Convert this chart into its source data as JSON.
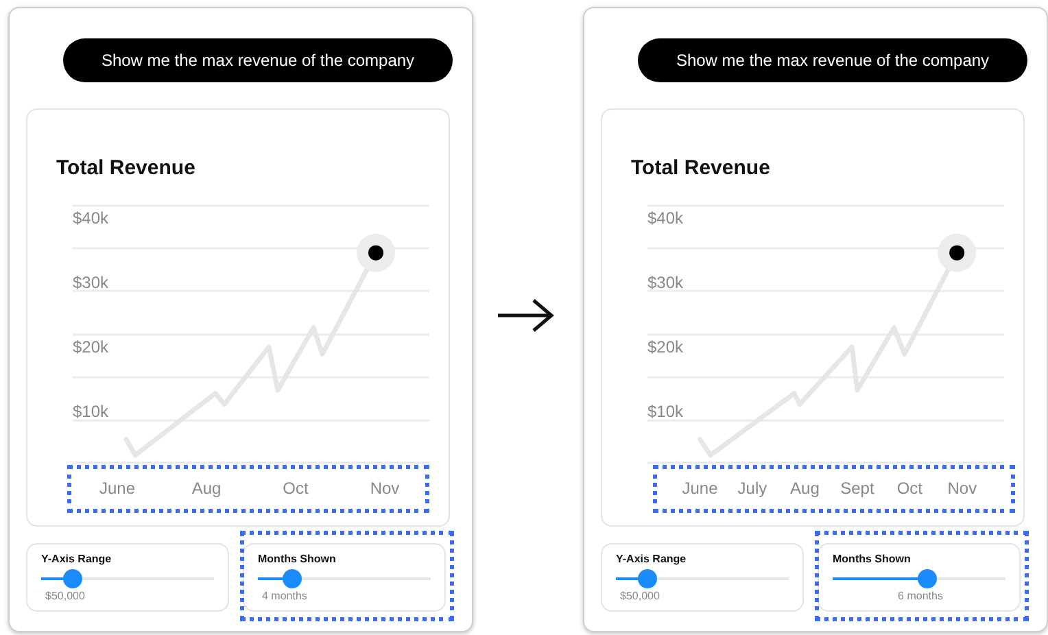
{
  "chart_data": [
    {
      "type": "line",
      "title": "Total Revenue",
      "grid": false,
      "ylim": [
        2.2,
        42.1
      ],
      "categories": [
        null,
        null,
        null,
        null,
        null,
        "June",
        null,
        null,
        null,
        null,
        null,
        null,
        null,
        null,
        null,
        "Aug",
        null,
        null,
        null,
        null,
        null,
        null,
        null,
        null,
        null,
        "Oct",
        null,
        null,
        null,
        null,
        null,
        null,
        null,
        null,
        null,
        "Nov",
        null,
        null,
        null,
        null,
        null
      ],
      "yticks": [
        {
          "value": 10,
          "label": "$10k"
        },
        {
          "value": 20,
          "label": "$20k"
        },
        {
          "value": 30,
          "label": "$30k"
        },
        {
          "value": 40,
          "label": "$40k"
        }
      ],
      "series": [
        {
          "color": "#e6e6e6",
          "marker": "none",
          "values": [
            null,
            null,
            null,
            null,
            null,
            null,
            5.9,
            3.4,
            null,
            null,
            null,
            null,
            null,
            null,
            null,
            null,
            13.0,
            11.3,
            null,
            null,
            null,
            null,
            20.2,
            13.5,
            null,
            null,
            null,
            23.2,
            19.1,
            null,
            null,
            null,
            null,
            null,
            34.8,
            null,
            null,
            null,
            null,
            null,
            null
          ]
        },
        {
          "type": "bubble",
          "color": "#ececec",
          "sizes": [
            null,
            null,
            null,
            null,
            null,
            null,
            null,
            null,
            null,
            null,
            null,
            null,
            null,
            null,
            null,
            null,
            null,
            null,
            null,
            null,
            null,
            null,
            null,
            null,
            null,
            null,
            null,
            null,
            null,
            null,
            null,
            null,
            null,
            null,
            1,
            null,
            null,
            null,
            null,
            null,
            null
          ],
          "values": [
            null,
            null,
            null,
            null,
            null,
            null,
            null,
            null,
            null,
            null,
            null,
            null,
            null,
            null,
            null,
            null,
            null,
            null,
            null,
            null,
            null,
            null,
            null,
            null,
            null,
            null,
            null,
            null,
            null,
            null,
            null,
            null,
            null,
            null,
            34.8,
            null,
            null,
            null,
            null,
            null,
            null
          ]
        },
        {
          "type": "scatter",
          "marker": "circle",
          "color": "#000000",
          "values": [
            null,
            null,
            null,
            null,
            null,
            null,
            null,
            null,
            null,
            null,
            null,
            null,
            null,
            null,
            null,
            null,
            null,
            null,
            null,
            null,
            null,
            null,
            null,
            null,
            null,
            null,
            null,
            null,
            null,
            null,
            null,
            null,
            null,
            null,
            34.8,
            null,
            null,
            null,
            null,
            null,
            null
          ]
        }
      ],
      "ref_lines": [
        {
          "axis": "y",
          "value": 2.2,
          "color": "#ececec"
        },
        {
          "axis": "y",
          "value": 8.8,
          "color": "#ececec"
        },
        {
          "axis": "y",
          "value": 15.5,
          "color": "#ececec"
        },
        {
          "axis": "y",
          "value": 22.1,
          "color": "#ececec"
        },
        {
          "axis": "y",
          "value": 28.9,
          "color": "#ececec"
        },
        {
          "axis": "y",
          "value": 35.5,
          "color": "#ececec"
        },
        {
          "axis": "y",
          "value": 42.1,
          "color": "#ececec"
        }
      ],
      "annotations": [
        "Show me the max revenue of the company",
        "Y-Axis Range",
        "$50,000",
        "Months Shown",
        "4 months"
      ]
    },
    {
      "type": "line",
      "title": "Total Revenue",
      "grid": false,
      "ylim": [
        2.2,
        42.1
      ],
      "categories": [
        null,
        null,
        null,
        null,
        null,
        null,
        null,
        null,
        null,
        null,
        "June",
        null,
        null,
        null,
        null,
        null,
        null,
        null,
        null,
        null,
        "July",
        null,
        null,
        null,
        null,
        null,
        null,
        null,
        null,
        null,
        "Aug",
        null,
        null,
        null,
        null,
        null,
        null,
        null,
        null,
        null,
        "Sept",
        null,
        null,
        null,
        null,
        null,
        null,
        null,
        null,
        null,
        "Oct",
        null,
        null,
        null,
        null,
        null,
        null,
        null,
        null,
        null,
        "Nov",
        null,
        null,
        null,
        null,
        null,
        null,
        null,
        null
      ],
      "yticks": [
        {
          "value": 10,
          "label": "$10k"
        },
        {
          "value": 20,
          "label": "$20k"
        },
        {
          "value": 30,
          "label": "$30k"
        },
        {
          "value": 40,
          "label": "$40k"
        }
      ],
      "series": [
        {
          "color": "#e6e6e6",
          "marker": "none",
          "values": [
            null,
            null,
            null,
            null,
            null,
            null,
            null,
            null,
            null,
            null,
            5.9,
            null,
            3.4,
            null,
            null,
            null,
            null,
            null,
            null,
            null,
            null,
            null,
            null,
            null,
            null,
            null,
            null,
            null,
            13.0,
            11.3,
            null,
            null,
            null,
            null,
            null,
            null,
            null,
            null,
            null,
            20.2,
            13.5,
            null,
            null,
            null,
            null,
            null,
            null,
            23.2,
            null,
            19.1,
            null,
            null,
            null,
            null,
            null,
            null,
            null,
            null,
            null,
            34.8,
            null,
            null,
            null,
            null,
            null,
            null,
            null,
            null,
            null
          ]
        },
        {
          "type": "bubble",
          "color": "#ececec",
          "sizes": [
            null,
            null,
            null,
            null,
            null,
            null,
            null,
            null,
            null,
            null,
            null,
            null,
            null,
            null,
            null,
            null,
            null,
            null,
            null,
            null,
            null,
            null,
            null,
            null,
            null,
            null,
            null,
            null,
            null,
            null,
            null,
            null,
            null,
            null,
            null,
            null,
            null,
            null,
            null,
            null,
            null,
            null,
            null,
            null,
            null,
            null,
            null,
            null,
            null,
            null,
            null,
            null,
            null,
            null,
            null,
            null,
            null,
            null,
            null,
            1,
            null,
            null,
            null,
            null,
            null,
            null,
            null,
            null,
            null
          ],
          "values": [
            null,
            null,
            null,
            null,
            null,
            null,
            null,
            null,
            null,
            null,
            null,
            null,
            null,
            null,
            null,
            null,
            null,
            null,
            null,
            null,
            null,
            null,
            null,
            null,
            null,
            null,
            null,
            null,
            null,
            null,
            null,
            null,
            null,
            null,
            null,
            null,
            null,
            null,
            null,
            null,
            null,
            null,
            null,
            null,
            null,
            null,
            null,
            null,
            null,
            null,
            null,
            null,
            null,
            null,
            null,
            null,
            null,
            null,
            null,
            34.8,
            null,
            null,
            null,
            null,
            null,
            null,
            null,
            null,
            null
          ]
        },
        {
          "type": "scatter",
          "marker": "circle",
          "color": "#000000",
          "values": [
            null,
            null,
            null,
            null,
            null,
            null,
            null,
            null,
            null,
            null,
            null,
            null,
            null,
            null,
            null,
            null,
            null,
            null,
            null,
            null,
            null,
            null,
            null,
            null,
            null,
            null,
            null,
            null,
            null,
            null,
            null,
            null,
            null,
            null,
            null,
            null,
            null,
            null,
            null,
            null,
            null,
            null,
            null,
            null,
            null,
            null,
            null,
            null,
            null,
            null,
            null,
            null,
            null,
            null,
            null,
            null,
            null,
            null,
            null,
            34.8,
            null,
            null,
            null,
            null,
            null,
            null,
            null,
            null,
            null
          ]
        }
      ],
      "ref_lines": [
        {
          "axis": "y",
          "value": 2.2,
          "color": "#ececec"
        },
        {
          "axis": "y",
          "value": 8.8,
          "color": "#ececec"
        },
        {
          "axis": "y",
          "value": 15.5,
          "color": "#ececec"
        },
        {
          "axis": "y",
          "value": 22.1,
          "color": "#ececec"
        },
        {
          "axis": "y",
          "value": 28.9,
          "color": "#ececec"
        },
        {
          "axis": "y",
          "value": 35.5,
          "color": "#ececec"
        },
        {
          "axis": "y",
          "value": 42.1,
          "color": "#ececec"
        }
      ],
      "annotations": [
        "Show me the max revenue of the company",
        "Y-Axis Range",
        "$50,000",
        "Months Shown",
        "6 months"
      ]
    }
  ]
}
